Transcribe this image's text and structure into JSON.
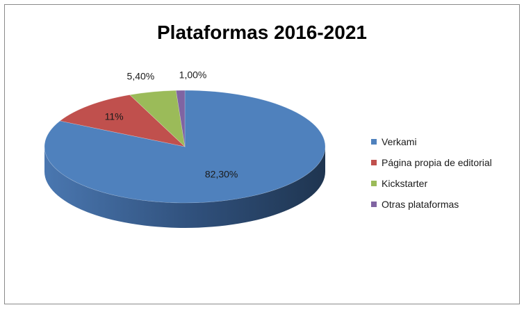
{
  "chart_data": {
    "type": "pie",
    "title": "Plataformas 2016-2021",
    "categories": [
      "Verkami",
      "Página propia de editorial",
      "Kickstarter",
      "Otras plataformas"
    ],
    "values": [
      82.3,
      11,
      5.4,
      1.0
    ],
    "data_labels": [
      "82,30%",
      "11%",
      "5,40%",
      "1,00%"
    ],
    "colors": [
      "#4f81bd",
      "#c0504d",
      "#9bbb59",
      "#8064a2"
    ],
    "style": "3d",
    "legend_position": "right"
  }
}
